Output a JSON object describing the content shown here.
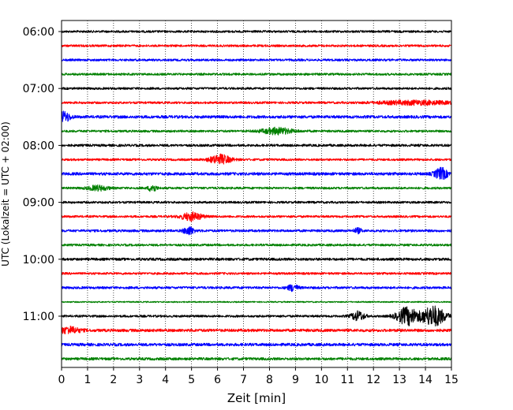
{
  "chart_data": {
    "type": "line",
    "title": "",
    "xlabel": "Zeit  [min]",
    "ylabel": "UTC (Lokalzeit = UTC + 02:00)",
    "xlim": [
      0,
      15
    ],
    "x_ticks": [
      "0",
      "1",
      "2",
      "3",
      "4",
      "5",
      "6",
      "7",
      "8",
      "9",
      "10",
      "11",
      "12",
      "13",
      "14",
      "15"
    ],
    "y_ticks": [
      "06:00",
      "07:00",
      "08:00",
      "09:00",
      "10:00",
      "11:00"
    ],
    "grid": "vertical dotted",
    "legend": "none",
    "trace_interval_min": 15,
    "trace_colors": [
      "#000000",
      "#ff0000",
      "#0000ff",
      "#008000"
    ],
    "traces": [
      {
        "start": "06:00",
        "amp": 1.0,
        "events": []
      },
      {
        "start": "06:15",
        "amp": 1.0,
        "events": []
      },
      {
        "start": "06:30",
        "amp": 1.0,
        "events": []
      },
      {
        "start": "06:45",
        "amp": 1.0,
        "events": []
      },
      {
        "start": "07:00",
        "amp": 1.0,
        "events": []
      },
      {
        "start": "07:15",
        "amp": 1.0,
        "events": [
          {
            "t": 13.6,
            "w": 1.4,
            "a": 2.5
          }
        ]
      },
      {
        "start": "07:30",
        "amp": 1.3,
        "events": [
          {
            "t": 0.1,
            "w": 0.25,
            "a": 6
          }
        ]
      },
      {
        "start": "07:45",
        "amp": 1.0,
        "events": [
          {
            "t": 8.3,
            "w": 0.6,
            "a": 4
          }
        ]
      },
      {
        "start": "08:00",
        "amp": 1.1,
        "events": []
      },
      {
        "start": "08:15",
        "amp": 1.0,
        "events": [
          {
            "t": 6.1,
            "w": 0.4,
            "a": 6
          }
        ]
      },
      {
        "start": "08:30",
        "amp": 1.3,
        "events": [
          {
            "t": 14.6,
            "w": 0.25,
            "a": 7
          }
        ]
      },
      {
        "start": "08:45",
        "amp": 1.0,
        "events": [
          {
            "t": 1.4,
            "w": 0.4,
            "a": 3
          },
          {
            "t": 3.5,
            "w": 0.15,
            "a": 5
          }
        ]
      },
      {
        "start": "09:00",
        "amp": 1.0,
        "events": []
      },
      {
        "start": "09:15",
        "amp": 1.0,
        "events": [
          {
            "t": 5.0,
            "w": 0.4,
            "a": 5
          }
        ]
      },
      {
        "start": "09:30",
        "amp": 1.1,
        "events": [
          {
            "t": 4.9,
            "w": 0.2,
            "a": 5
          },
          {
            "t": 11.4,
            "w": 0.15,
            "a": 3
          }
        ]
      },
      {
        "start": "09:45",
        "amp": 1.0,
        "events": []
      },
      {
        "start": "10:00",
        "amp": 1.2,
        "events": []
      },
      {
        "start": "10:15",
        "amp": 1.0,
        "events": []
      },
      {
        "start": "10:30",
        "amp": 1.1,
        "events": [
          {
            "t": 8.9,
            "w": 0.2,
            "a": 4
          }
        ]
      },
      {
        "start": "10:45",
        "amp": 0.6,
        "events": []
      },
      {
        "start": "11:00",
        "amp": 1.0,
        "events": [
          {
            "t": 11.4,
            "w": 0.25,
            "a": 6
          },
          {
            "t": 13.3,
            "w": 0.4,
            "a": 11
          },
          {
            "t": 14.3,
            "w": 0.45,
            "a": 13
          }
        ]
      },
      {
        "start": "11:15",
        "amp": 1.3,
        "events": [
          {
            "t": 0.3,
            "w": 0.4,
            "a": 4
          }
        ]
      },
      {
        "start": "11:30",
        "amp": 1.3,
        "events": []
      },
      {
        "start": "11:45",
        "amp": 1.2,
        "events": []
      }
    ]
  }
}
